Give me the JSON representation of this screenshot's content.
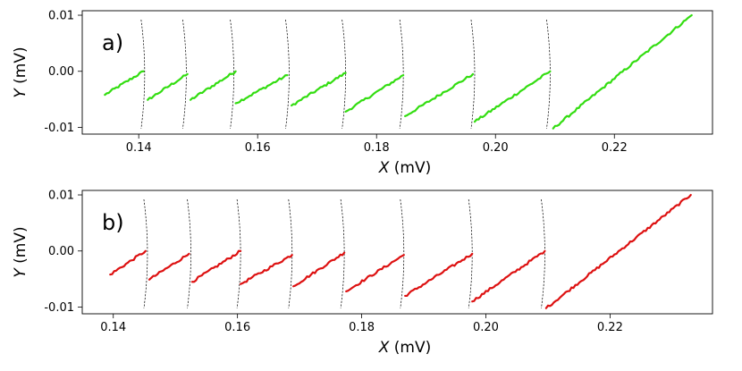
{
  "chart_data": [
    {
      "type": "line",
      "panel_label": "a)",
      "xlabel_var": "X",
      "xlabel_unit": " (mV)",
      "ylabel_var": "Y",
      "ylabel_unit": " (mV)",
      "xlim": [
        0.1305,
        0.2365
      ],
      "ylim": [
        -0.0112,
        0.0108
      ],
      "xticks": [
        {
          "value": 0.14,
          "label": "0.14"
        },
        {
          "value": 0.16,
          "label": "0.16"
        },
        {
          "value": 0.18,
          "label": "0.18"
        },
        {
          "value": 0.2,
          "label": "0.20"
        },
        {
          "value": 0.22,
          "label": "0.22"
        }
      ],
      "yticks": [
        {
          "value": 0.01,
          "label": "0.01"
        },
        {
          "value": 0.0,
          "label": "0.00"
        },
        {
          "value": -0.01,
          "label": "-0.01"
        }
      ],
      "color": "#33dd11",
      "series": [
        {
          "name": "segment-1",
          "x": [
            0.1343,
            0.1408
          ],
          "y": [
            -0.0042,
            0.0
          ]
        },
        {
          "name": "segment-2",
          "x": [
            0.1415,
            0.1482
          ],
          "y": [
            -0.0051,
            -0.0005
          ]
        },
        {
          "name": "segment-3",
          "x": [
            0.1487,
            0.1563
          ],
          "y": [
            -0.0051,
            0.0
          ]
        },
        {
          "name": "segment-4",
          "x": [
            0.1563,
            0.165
          ],
          "y": [
            -0.0057,
            -0.0007
          ]
        },
        {
          "name": "segment-5",
          "x": [
            0.1657,
            0.1748
          ],
          "y": [
            -0.0061,
            -0.0003
          ]
        },
        {
          "name": "segment-6",
          "x": [
            0.1748,
            0.1845
          ],
          "y": [
            -0.0072,
            -0.0007
          ]
        },
        {
          "name": "segment-7",
          "x": [
            0.1848,
            0.1962
          ],
          "y": [
            -0.008,
            -0.0005
          ]
        },
        {
          "name": "segment-8",
          "x": [
            0.1965,
            0.2092
          ],
          "y": [
            -0.009,
            0.0
          ]
        },
        {
          "name": "segment-9",
          "x": [
            0.2097,
            0.233
          ],
          "y": [
            -0.0102,
            0.01
          ]
        }
      ],
      "guide_x": [
        0.141,
        0.148,
        0.156,
        0.1653,
        0.1748,
        0.1845,
        0.1965,
        0.2092
      ]
    },
    {
      "type": "line",
      "panel_label": "b)",
      "xlabel_var": "X",
      "xlabel_unit": " (mV)",
      "ylabel_var": "Y",
      "ylabel_unit": " (mV)",
      "xlim": [
        0.135,
        0.2365
      ],
      "ylim": [
        -0.0112,
        0.0108
      ],
      "xticks": [
        {
          "value": 0.14,
          "label": "0.14"
        },
        {
          "value": 0.16,
          "label": "0.16"
        },
        {
          "value": 0.18,
          "label": "0.18"
        },
        {
          "value": 0.2,
          "label": "0.20"
        },
        {
          "value": 0.22,
          "label": "0.22"
        }
      ],
      "yticks": [
        {
          "value": 0.01,
          "label": "0.01"
        },
        {
          "value": 0.0,
          "label": "0.00"
        },
        {
          "value": -0.01,
          "label": "-0.01"
        }
      ],
      "color": "#dd1111",
      "series": [
        {
          "name": "segment-1",
          "x": [
            0.1395,
            0.1452
          ],
          "y": [
            -0.0042,
            0.0
          ]
        },
        {
          "name": "segment-2",
          "x": [
            0.1458,
            0.1522
          ],
          "y": [
            -0.0051,
            -0.0005
          ]
        },
        {
          "name": "segment-3",
          "x": [
            0.1527,
            0.1605
          ],
          "y": [
            -0.0055,
            0.0
          ]
        },
        {
          "name": "segment-4",
          "x": [
            0.1605,
            0.1688
          ],
          "y": [
            -0.0059,
            -0.0007
          ]
        },
        {
          "name": "segment-5",
          "x": [
            0.169,
            0.1772
          ],
          "y": [
            -0.0063,
            -0.0003
          ]
        },
        {
          "name": "segment-6",
          "x": [
            0.1775,
            0.1868
          ],
          "y": [
            -0.0072,
            -0.0007
          ]
        },
        {
          "name": "segment-7",
          "x": [
            0.187,
            0.1978
          ],
          "y": [
            -0.008,
            -0.0005
          ]
        },
        {
          "name": "segment-8",
          "x": [
            0.1978,
            0.2095
          ],
          "y": [
            -0.009,
            0.0
          ]
        },
        {
          "name": "segment-9",
          "x": [
            0.2097,
            0.233
          ],
          "y": [
            -0.0102,
            0.01
          ]
        }
      ],
      "guide_x": [
        0.1455,
        0.1525,
        0.1605,
        0.1688,
        0.1772,
        0.1868,
        0.1978,
        0.2095
      ]
    }
  ]
}
